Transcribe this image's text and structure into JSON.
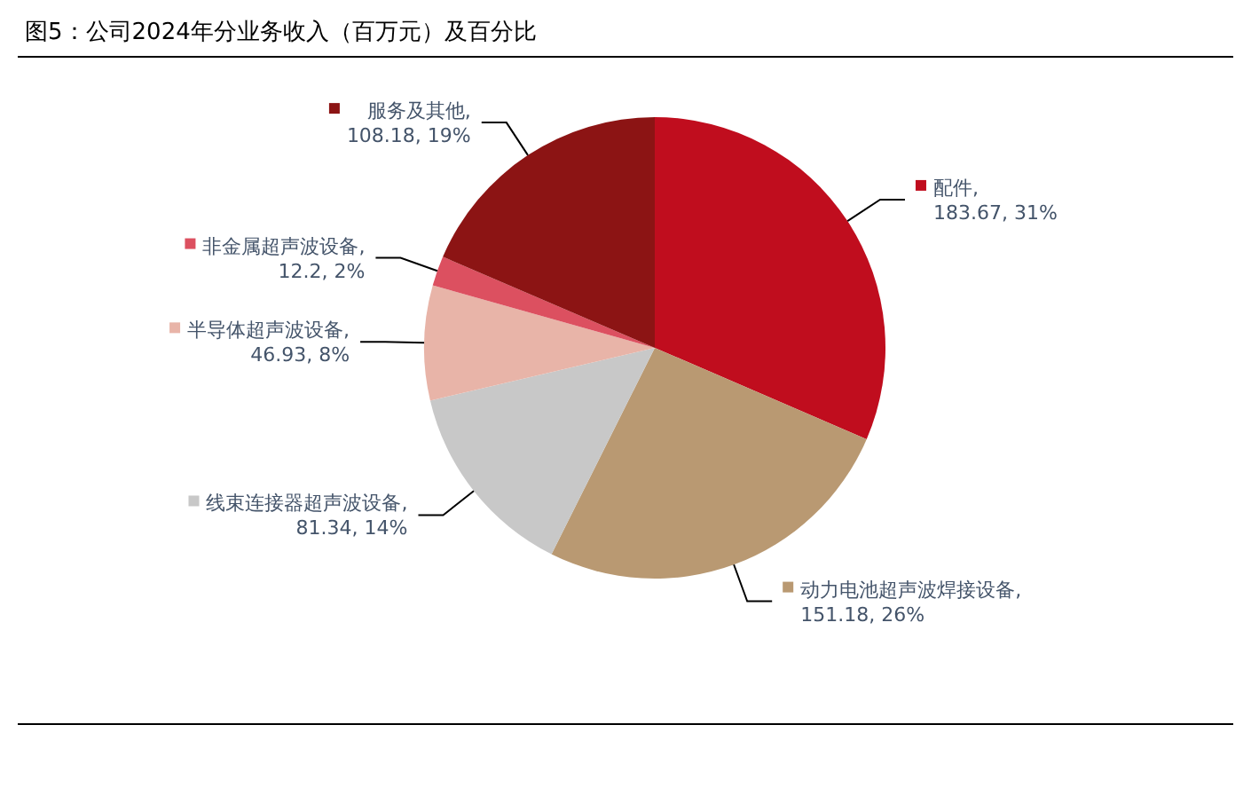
{
  "chart_data": {
    "type": "pie",
    "title": "图5：公司2024年分业务收入（百万元）及百分比",
    "categories": [
      "配件",
      "动力电池超声波焊接设备",
      "线束连接器超声波设备",
      "半导体超声波设备",
      "非金属超声波设备",
      "服务及其他"
    ],
    "values": [
      183.67,
      151.18,
      81.34,
      46.93,
      12.2,
      108.18
    ],
    "legend": true,
    "colors": [
      "#c00d1e",
      "#b99972",
      "#c8c8c8",
      "#e8b4a8",
      "#dc5060",
      "#8c1414"
    ],
    "value_labels": [
      ", 183.67, 31%",
      ", 151.18, 26%",
      ", 81.34, 14%",
      ", 46.93, 8%",
      ", 12.2, 2%",
      ", 108.18, 19%"
    ]
  }
}
